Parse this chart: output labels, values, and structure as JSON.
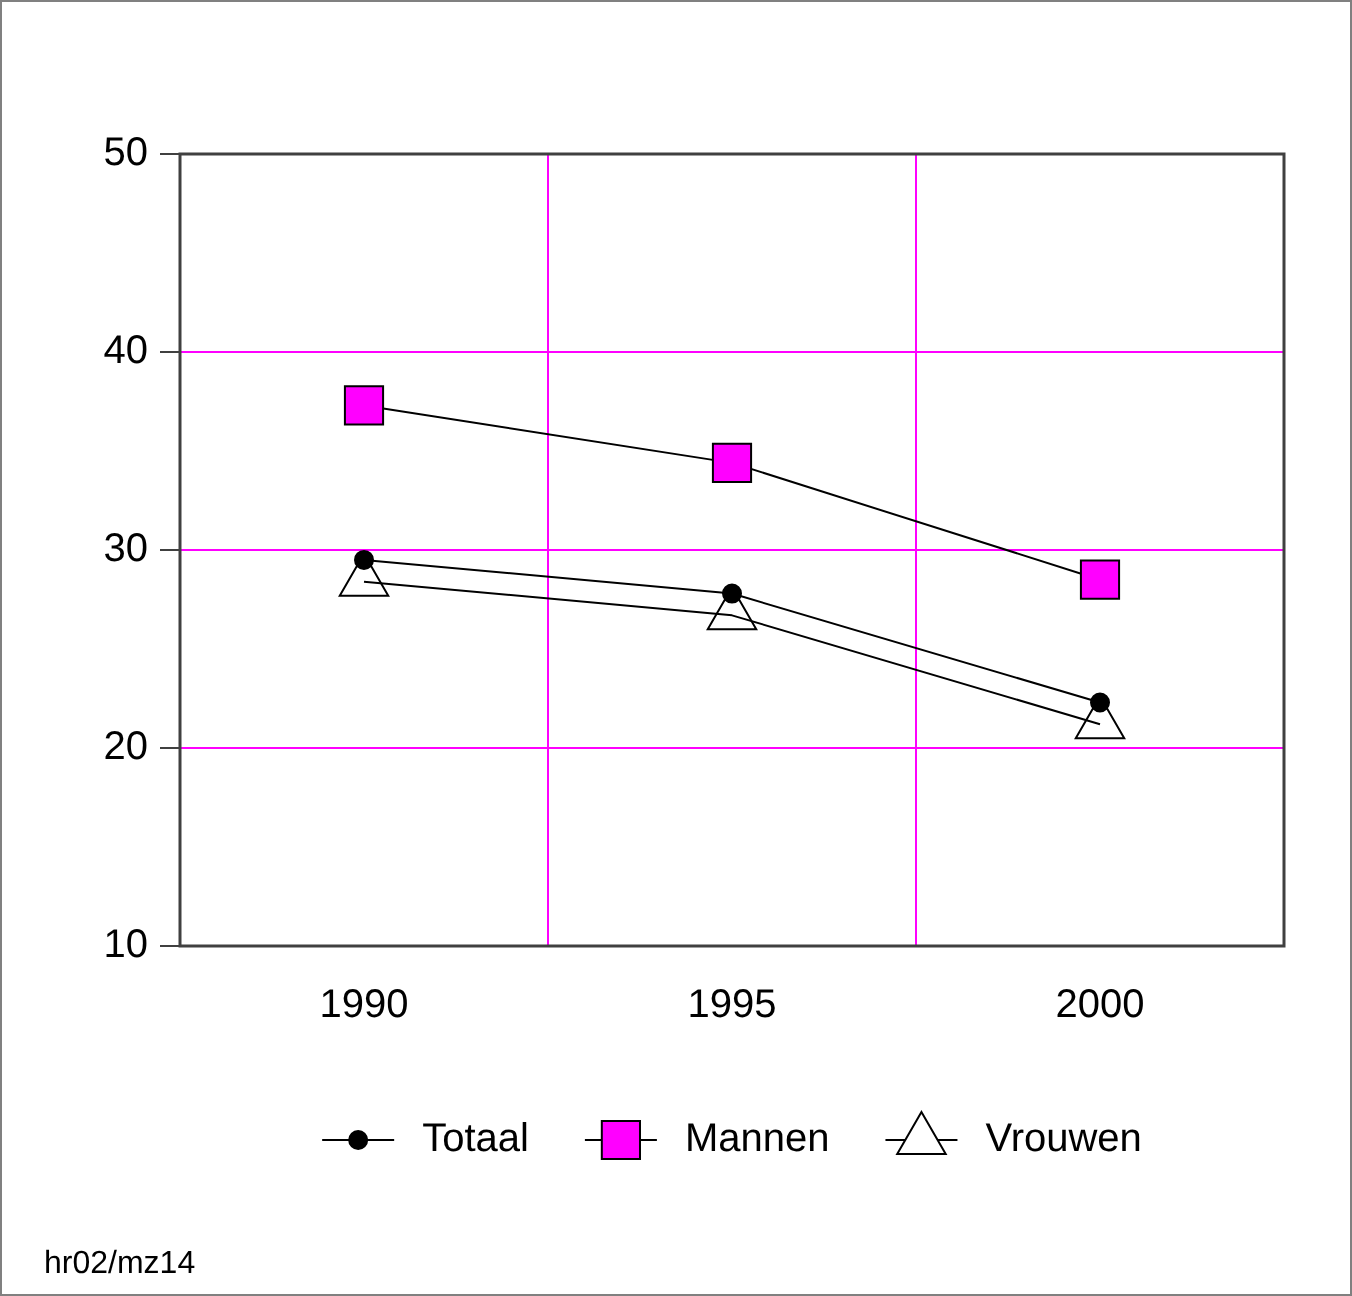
{
  "chart_data": {
    "type": "line",
    "categories": [
      "1990",
      "1995",
      "2000"
    ],
    "series": [
      {
        "name": "Totaal",
        "color": "#000000",
        "marker": "circle",
        "values": [
          29.5,
          27.8,
          22.3
        ]
      },
      {
        "name": "Mannen",
        "color": "#ff00ff",
        "marker": "square",
        "values": [
          37.3,
          34.4,
          28.5
        ]
      },
      {
        "name": "Vrouwen",
        "color": "#000000",
        "marker": "triangle",
        "values": [
          28.4,
          26.7,
          21.2
        ]
      }
    ],
    "ylim": [
      10,
      50
    ],
    "yticks": [
      10,
      20,
      30,
      40,
      50
    ],
    "grid": true,
    "legend": "bottom",
    "line_style": "solid",
    "annotations": [
      "hr02/mz14"
    ]
  }
}
